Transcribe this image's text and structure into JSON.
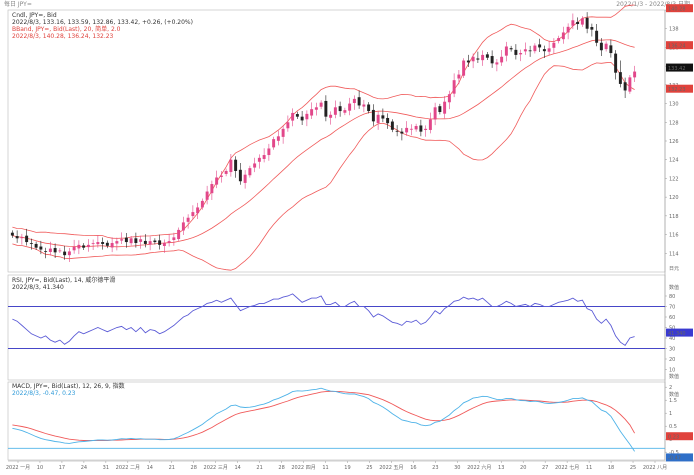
{
  "window": {
    "title_left": "每日 JPY=",
    "title_right": "2022/1/3 - 2022/8/3 日期"
  },
  "colors": {
    "bull": "#e2478a",
    "bear": "#222222",
    "bollinger": "#f05a5a",
    "rsi": "#5b5bd6",
    "macd_line": "#4fb3e8",
    "signal_line": "#f05a5a",
    "level_line": "#4646c8",
    "bg": "#ffffff",
    "grid": "#e8e8e8"
  },
  "panels": {
    "price": {
      "legend": [
        "Cndl, JPY=, Bid",
        "2022/8/3, 133.16, 133.59, 132.86, 133.42, +0.26, (+0.20%)",
        "BBand, JPY=, Bid(Last), 20, 简单, 2.0",
        "2022/8/3, 140.28, 136.24, 132.23"
      ],
      "last_badge": "133.42",
      "upper_badge": "140.28",
      "mid_badge": "136.24",
      "lower_badge": "132.23",
      "right_ticks": [
        "139.99",
        "138",
        "136",
        "134",
        "132",
        "130",
        "128",
        "126",
        "124",
        "122",
        "120",
        "118",
        "116",
        "114"
      ],
      "right_tick_bottom": "日元"
    },
    "rsi": {
      "legend": [
        "RSI, JPY=, Bid(Last), 14, 威尔德平滑",
        "2022/8/3, 41.340"
      ],
      "badge": "41.340",
      "right_ticks": [
        "数值",
        "80",
        "70",
        "60",
        "50",
        "40",
        "30",
        "20",
        "10"
      ],
      "right_tick_bottom": "数值",
      "levels": [
        70,
        30
      ]
    },
    "macd": {
      "legend": [
        "MACD, JPY=, Bid(Last), 12, 26, 9, 指数",
        "2022/8/3, -0.47, 0.23"
      ],
      "badge_signal": "0.23",
      "badge_macd": "-0.47",
      "right_ticks": [
        "数值",
        "2",
        "1.5",
        "1",
        "0.5",
        "0",
        "-0.5"
      ],
      "right_tick_bottom": "数值"
    }
  },
  "x_axis": {
    "labels": [
      "2022 一月",
      "10",
      "17",
      "24",
      "31",
      "2022 二月",
      "14",
      "21",
      "28",
      "2022 三月",
      "14",
      "21",
      "28",
      "2022 四月",
      "11",
      "19",
      "25",
      "2022 五月",
      "16",
      "23",
      "30",
      "2022 六月",
      "13",
      "20",
      "27",
      "2022 七月",
      "11",
      "18",
      "25",
      "2022 八月"
    ]
  },
  "chart_data": [
    {
      "type": "line",
      "title": "Cndl, JPY=, Bid",
      "subtitle": "BBand, JPY=, Bid(Last), 20, 简单, 2.0",
      "ylim": [
        112,
        140
      ],
      "close": [
        115.9,
        115.6,
        115.7,
        115.2,
        115.0,
        114.6,
        114.4,
        114.2,
        114.5,
        114.1,
        114.3,
        113.8,
        114.2,
        114.7,
        114.9,
        114.6,
        114.9,
        115.1,
        115.2,
        115.0,
        114.8,
        115.1,
        115.3,
        115.5,
        115.2,
        115.6,
        115.1,
        115.5,
        115.0,
        115.3,
        115.2,
        114.9,
        115.1,
        115.3,
        115.7,
        116.5,
        117.3,
        117.8,
        118.4,
        118.9,
        119.6,
        120.6,
        121.4,
        122.1,
        122.3,
        122.8,
        124.0,
        122.8,
        121.7,
        122.4,
        123.1,
        123.6,
        124.2,
        124.5,
        125.2,
        126.2,
        126.5,
        127.3,
        128.0,
        129.0,
        128.6,
        128.2,
        128.9,
        129.4,
        129.6,
        130.1,
        128.6,
        128.8,
        129.6,
        129.2,
        129.3,
        130.0,
        130.5,
        129.8,
        129.9,
        129.2,
        128.1,
        128.8,
        128.4,
        127.9,
        127.2,
        127.0,
        126.8,
        127.4,
        127.3,
        127.6,
        127.0,
        127.3,
        128.3,
        129.6,
        129.1,
        130.2,
        131.0,
        132.5,
        133.1,
        134.6,
        134.4,
        135.0,
        134.7,
        135.2,
        134.9,
        134.3,
        134.4,
        135.0,
        136.1,
        135.8,
        135.2,
        135.4,
        135.8,
        135.6,
        136.2,
        136.0,
        135.6,
        135.9,
        136.5,
        137.0,
        137.6,
        138.2,
        138.9,
        138.5,
        139.1,
        138.0,
        137.9,
        136.5,
        135.7,
        136.4,
        135.4,
        133.3,
        132.1,
        131.4,
        132.8,
        133.42
      ],
      "bollinger": {
        "upper_last": 140.28,
        "middle_last": 136.24,
        "lower_last": 132.23
      },
      "series": [
        {
          "name": "Cndl, JPY=, Bid",
          "values_key": "close"
        }
      ]
    },
    {
      "type": "line",
      "title": "RSI, JPY=, Bid(Last), 14, 威尔德平滑",
      "ylim": [
        0,
        100
      ],
      "values": [
        58,
        56,
        52,
        48,
        44,
        42,
        40,
        42,
        38,
        36,
        38,
        34,
        37,
        42,
        46,
        44,
        46,
        48,
        50,
        48,
        46,
        48,
        50,
        51,
        48,
        50,
        46,
        50,
        45,
        48,
        47,
        44,
        46,
        49,
        52,
        56,
        60,
        62,
        66,
        68,
        70,
        73,
        74,
        76,
        74,
        76,
        78,
        72,
        66,
        68,
        70,
        71,
        73,
        73,
        75,
        77,
        77,
        79,
        80,
        82,
        78,
        74,
        76,
        78,
        78,
        80,
        72,
        72,
        74,
        70,
        70,
        73,
        75,
        70,
        70,
        66,
        60,
        63,
        61,
        58,
        55,
        54,
        52,
        56,
        55,
        57,
        53,
        55,
        60,
        66,
        63,
        68,
        71,
        75,
        76,
        79,
        77,
        78,
        76,
        78,
        74,
        70,
        70,
        72,
        75,
        73,
        70,
        71,
        72,
        70,
        73,
        72,
        70,
        70,
        72,
        74,
        75,
        76,
        78,
        75,
        76,
        68,
        66,
        58,
        54,
        58,
        52,
        42,
        36,
        33,
        40,
        41.34
      ],
      "levels": [
        70,
        30
      ]
    },
    {
      "type": "line",
      "title": "MACD, JPY=, Bid(Last), 12, 26, 9, 指数",
      "ylim": [
        -0.8,
        2.2
      ],
      "series": [
        {
          "name": "MACD",
          "values": [
            0.42,
            0.38,
            0.33,
            0.26,
            0.18,
            0.1,
            0.03,
            -0.02,
            -0.05,
            -0.09,
            -0.11,
            -0.15,
            -0.16,
            -0.13,
            -0.1,
            -0.09,
            -0.07,
            -0.05,
            -0.03,
            -0.03,
            -0.04,
            -0.03,
            -0.01,
            0.02,
            0.01,
            0.03,
            0.01,
            0.02,
            0.0,
            0.0,
            0.0,
            -0.02,
            -0.02,
            -0.01,
            0.02,
            0.09,
            0.18,
            0.26,
            0.36,
            0.46,
            0.57,
            0.71,
            0.84,
            0.98,
            1.07,
            1.16,
            1.29,
            1.31,
            1.24,
            1.22,
            1.23,
            1.26,
            1.31,
            1.35,
            1.42,
            1.51,
            1.57,
            1.65,
            1.73,
            1.83,
            1.86,
            1.85,
            1.87,
            1.9,
            1.92,
            1.96,
            1.9,
            1.85,
            1.84,
            1.79,
            1.75,
            1.74,
            1.74,
            1.69,
            1.64,
            1.56,
            1.42,
            1.34,
            1.24,
            1.12,
            0.98,
            0.86,
            0.74,
            0.7,
            0.65,
            0.63,
            0.55,
            0.52,
            0.55,
            0.65,
            0.69,
            0.81,
            0.93,
            1.1,
            1.23,
            1.4,
            1.48,
            1.58,
            1.61,
            1.65,
            1.64,
            1.58,
            1.53,
            1.52,
            1.57,
            1.57,
            1.52,
            1.49,
            1.48,
            1.45,
            1.46,
            1.44,
            1.39,
            1.37,
            1.39,
            1.41,
            1.45,
            1.5,
            1.56,
            1.56,
            1.59,
            1.51,
            1.45,
            1.28,
            1.12,
            1.05,
            0.88,
            0.6,
            0.3,
            0.05,
            -0.2,
            -0.47
          ]
        },
        {
          "name": "Signal",
          "values": [
            0.55,
            0.52,
            0.49,
            0.45,
            0.4,
            0.34,
            0.28,
            0.22,
            0.17,
            0.12,
            0.08,
            0.04,
            0.0,
            -0.02,
            -0.04,
            -0.05,
            -0.05,
            -0.05,
            -0.05,
            -0.05,
            -0.05,
            -0.04,
            -0.04,
            -0.03,
            -0.02,
            -0.01,
            -0.01,
            0.0,
            0.0,
            0.0,
            0.0,
            0.0,
            -0.01,
            -0.01,
            0.0,
            0.02,
            0.05,
            0.09,
            0.14,
            0.2,
            0.27,
            0.36,
            0.45,
            0.56,
            0.66,
            0.76,
            0.86,
            0.95,
            1.01,
            1.05,
            1.09,
            1.12,
            1.16,
            1.2,
            1.24,
            1.29,
            1.35,
            1.41,
            1.47,
            1.54,
            1.6,
            1.65,
            1.69,
            1.73,
            1.77,
            1.81,
            1.83,
            1.84,
            1.84,
            1.83,
            1.82,
            1.8,
            1.79,
            1.77,
            1.74,
            1.71,
            1.65,
            1.59,
            1.52,
            1.44,
            1.35,
            1.25,
            1.15,
            1.06,
            0.98,
            0.91,
            0.84,
            0.77,
            0.73,
            0.71,
            0.71,
            0.73,
            0.77,
            0.84,
            0.92,
            1.01,
            1.11,
            1.2,
            1.28,
            1.36,
            1.42,
            1.45,
            1.47,
            1.48,
            1.5,
            1.51,
            1.51,
            1.51,
            1.5,
            1.49,
            1.48,
            1.47,
            1.45,
            1.43,
            1.42,
            1.42,
            1.42,
            1.43,
            1.46,
            1.48,
            1.5,
            1.5,
            1.49,
            1.45,
            1.38,
            1.32,
            1.23,
            1.11,
            0.95,
            0.77,
            0.55,
            0.23
          ]
        }
      ]
    }
  ]
}
